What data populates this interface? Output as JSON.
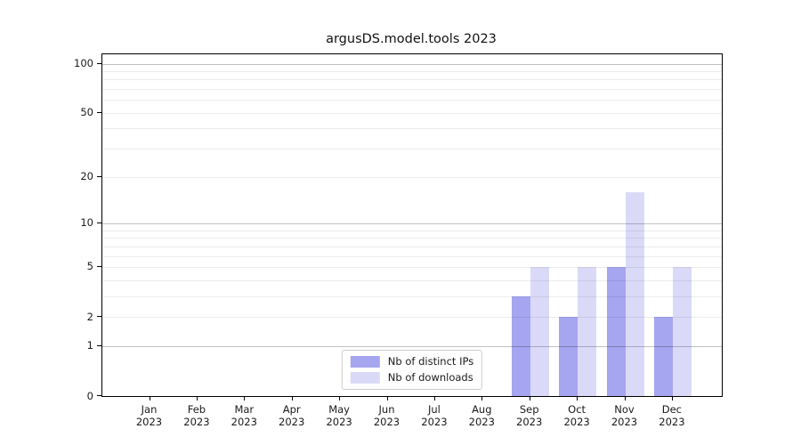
{
  "title": "argusDS.model.tools 2023",
  "chart_data": {
    "type": "bar",
    "title": "argusDS.model.tools 2023",
    "months": [
      "Jan",
      "Feb",
      "Mar",
      "Apr",
      "May",
      "Jun",
      "Jul",
      "Aug",
      "Sep",
      "Oct",
      "Nov",
      "Dec"
    ],
    "year": "2023",
    "y_ticks": [
      0,
      1,
      2,
      5,
      10,
      20,
      50,
      100
    ],
    "y_scale": "log1p",
    "ylim": [
      0,
      114
    ],
    "grid": {
      "major_values": [
        1,
        10,
        100
      ],
      "minor_values": [
        2,
        3,
        4,
        5,
        6,
        7,
        8,
        9,
        20,
        30,
        40,
        50,
        60,
        70,
        80,
        90
      ]
    },
    "legend_position": "lower center",
    "series": [
      {
        "name": "Nb of distinct IPs",
        "color": "#a5a5f0",
        "values": [
          0,
          0,
          0,
          0,
          0,
          0,
          0,
          0,
          3,
          2,
          5,
          2
        ]
      },
      {
        "name": "Nb of downloads",
        "color": "#dadaf8",
        "values": [
          0,
          0,
          0,
          0,
          0,
          0,
          0,
          0,
          5,
          5,
          16,
          5
        ]
      }
    ]
  }
}
